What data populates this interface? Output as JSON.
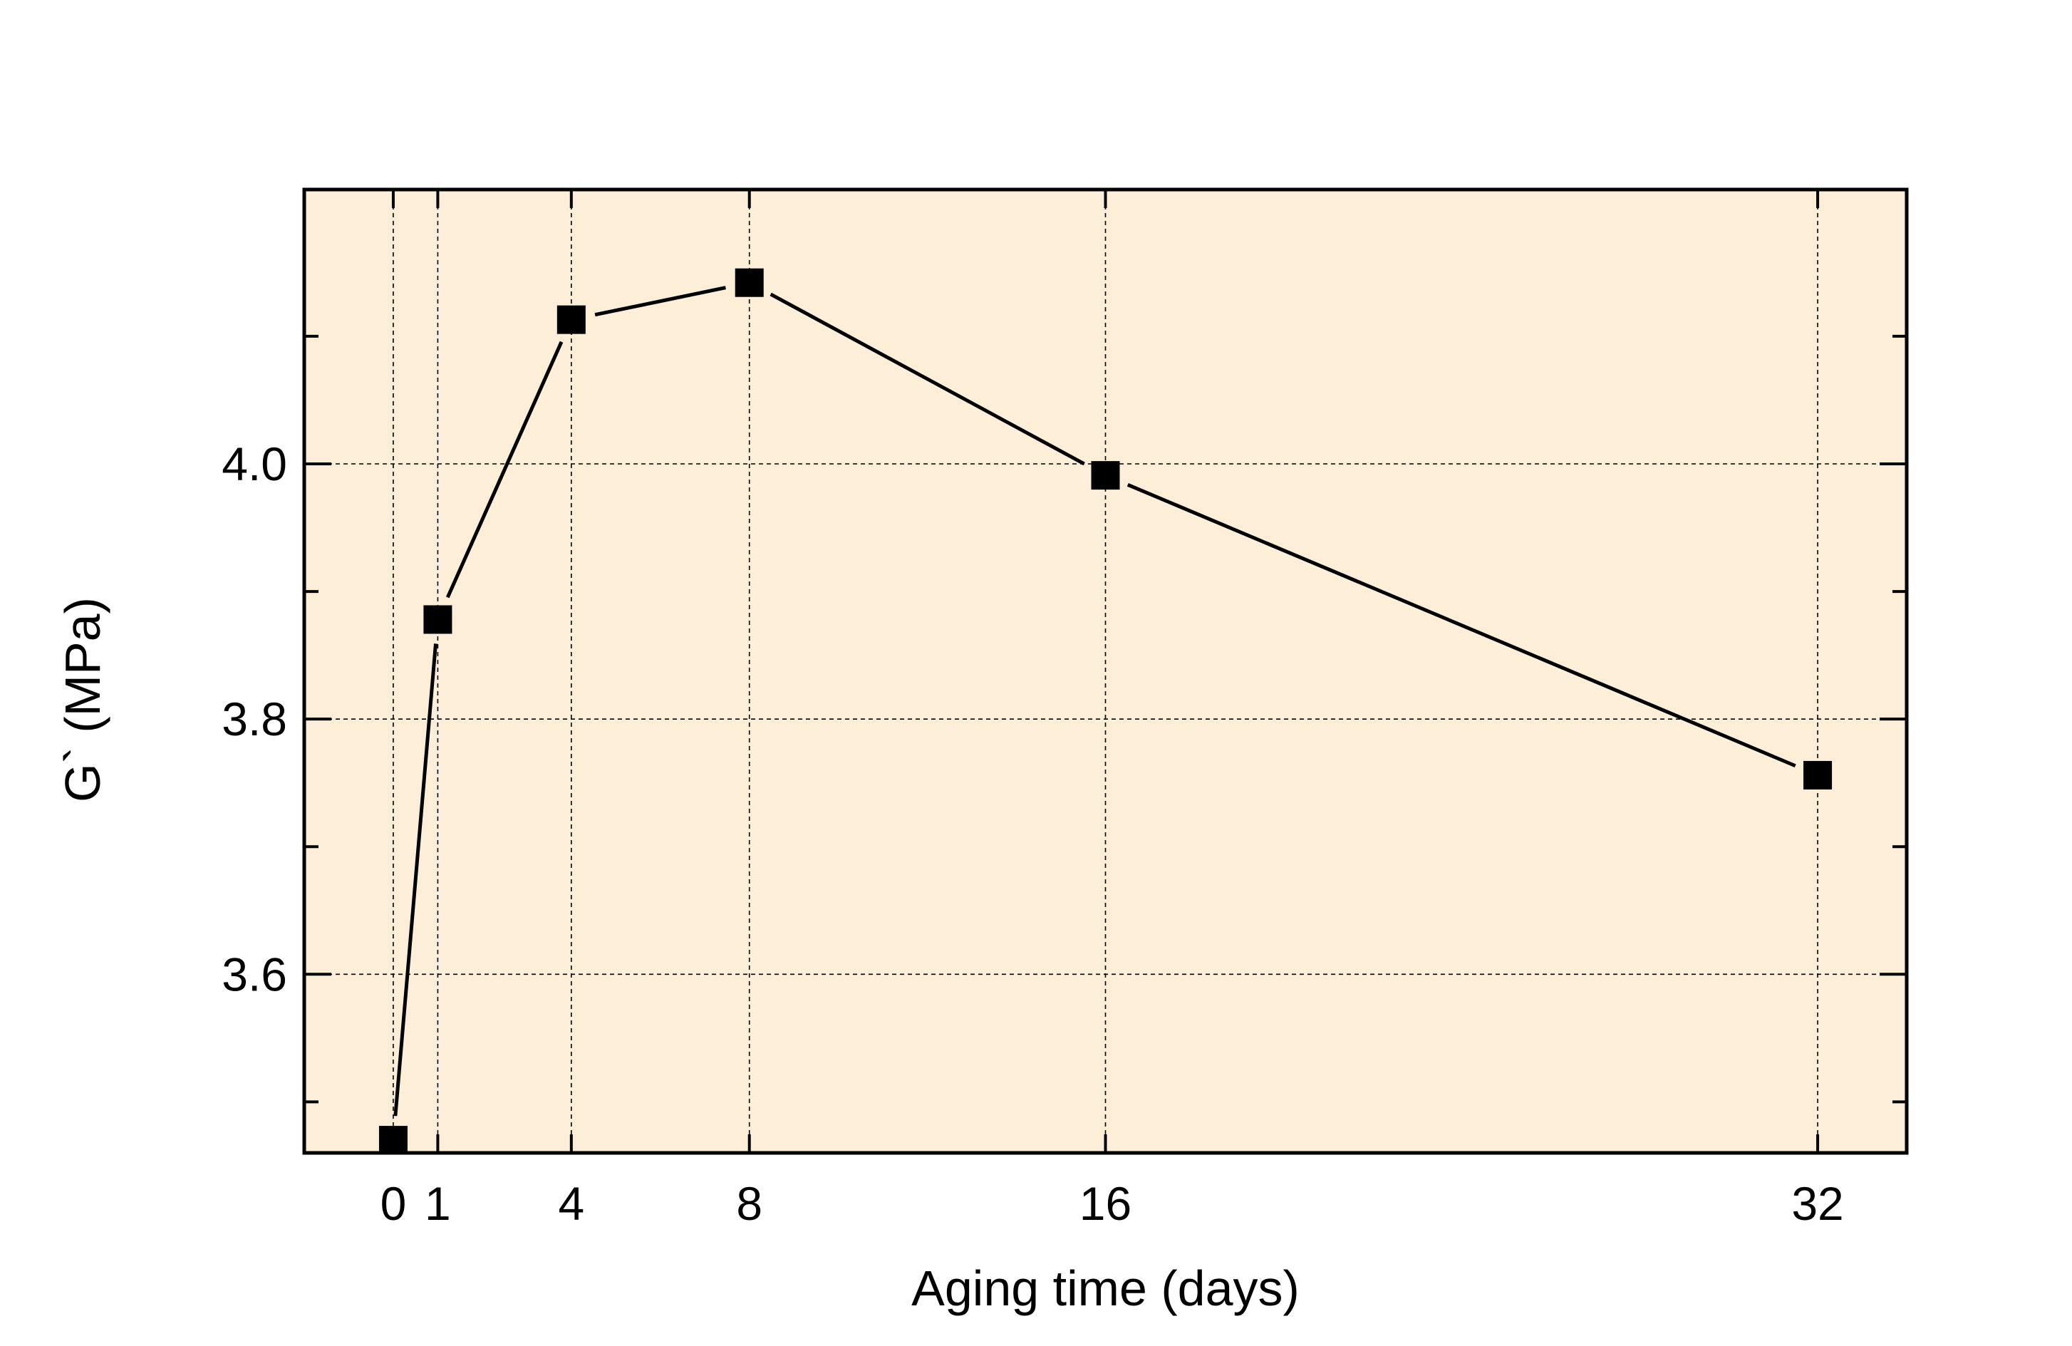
{
  "chart_data": {
    "type": "line",
    "title": "",
    "xlabel": "Aging time (days)",
    "ylabel": "G` (MPa)",
    "x": [
      0,
      1,
      4,
      8,
      16,
      32
    ],
    "x_tick_labels": [
      "0",
      "1",
      "4",
      "8",
      "16",
      "32"
    ],
    "xlim": [
      -2,
      34
    ],
    "ylim": [
      3.46,
      4.215
    ],
    "y_ticks": [
      3.6,
      3.8,
      4.0
    ],
    "y_tick_labels": [
      "3.6",
      "3.8",
      "4.0"
    ],
    "y_minor_ticks": [
      3.5,
      3.7,
      3.9,
      4.1
    ],
    "grid": true,
    "plot_background": "#fdeed7",
    "series": [
      {
        "name": "",
        "color": "#000000",
        "marker": "square",
        "values": [
          3.47,
          3.878,
          4.113,
          4.142,
          3.991,
          3.756
        ]
      }
    ]
  }
}
